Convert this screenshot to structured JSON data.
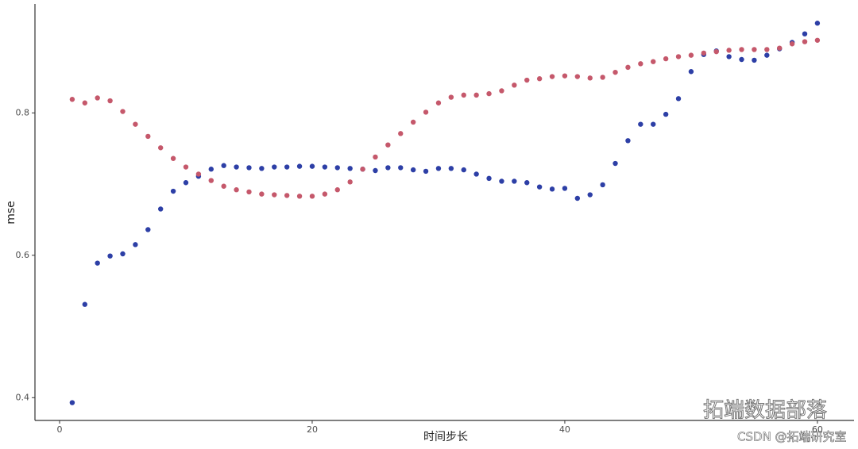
{
  "chart_data": {
    "type": "scatter",
    "x_label": "时间步长",
    "y_label": "mse",
    "x": [
      1,
      2,
      3,
      4,
      5,
      6,
      7,
      8,
      9,
      10,
      11,
      12,
      13,
      14,
      15,
      16,
      17,
      18,
      19,
      20,
      21,
      22,
      23,
      24,
      25,
      26,
      27,
      28,
      29,
      30,
      31,
      32,
      33,
      34,
      35,
      36,
      37,
      38,
      39,
      40,
      41,
      42,
      43,
      44,
      45,
      46,
      47,
      48,
      49,
      50,
      51,
      52,
      53,
      54,
      55,
      56,
      57,
      58,
      59,
      60
    ],
    "series": [
      {
        "color": "#2d3fa6",
        "values": [
          0.393,
          0.531,
          0.589,
          0.599,
          0.602,
          0.615,
          0.636,
          0.665,
          0.69,
          0.702,
          0.711,
          0.721,
          0.726,
          0.724,
          0.723,
          0.722,
          0.724,
          0.724,
          0.725,
          0.725,
          0.724,
          0.723,
          0.722,
          0.721,
          0.719,
          0.723,
          0.723,
          0.72,
          0.718,
          0.722,
          0.722,
          0.72,
          0.714,
          0.708,
          0.704,
          0.704,
          0.702,
          0.696,
          0.693,
          0.694,
          0.68,
          0.685,
          0.699,
          0.729,
          0.761,
          0.784,
          0.784,
          0.798,
          0.82,
          0.858,
          0.882,
          0.887,
          0.879,
          0.875,
          0.874,
          0.881,
          0.89,
          0.899,
          0.911,
          0.926
        ]
      },
      {
        "color": "#c5586b",
        "values": [
          0.819,
          0.814,
          0.821,
          0.817,
          0.802,
          0.784,
          0.767,
          0.751,
          0.736,
          0.724,
          0.714,
          0.705,
          0.697,
          0.692,
          0.689,
          0.686,
          0.685,
          0.684,
          0.683,
          0.683,
          0.686,
          0.692,
          0.703,
          0.721,
          0.738,
          0.755,
          0.771,
          0.787,
          0.801,
          0.814,
          0.822,
          0.825,
          0.825,
          0.827,
          0.831,
          0.839,
          0.846,
          0.848,
          0.851,
          0.852,
          0.851,
          0.849,
          0.85,
          0.857,
          0.864,
          0.869,
          0.872,
          0.876,
          0.879,
          0.881,
          0.884,
          0.886,
          0.888,
          0.889,
          0.889,
          0.889,
          0.891,
          0.897,
          0.9,
          0.902
        ]
      }
    ],
    "xlim": [
      -1.95,
      62.9
    ],
    "ylim": [
      0.368,
      0.953
    ],
    "xticks": [
      0,
      20,
      40,
      60
    ],
    "yticks": [
      0.4,
      0.6,
      0.8
    ],
    "grid": false
  },
  "watermark": "拓端数据部落",
  "credit": "CSDN @拓端研究室"
}
